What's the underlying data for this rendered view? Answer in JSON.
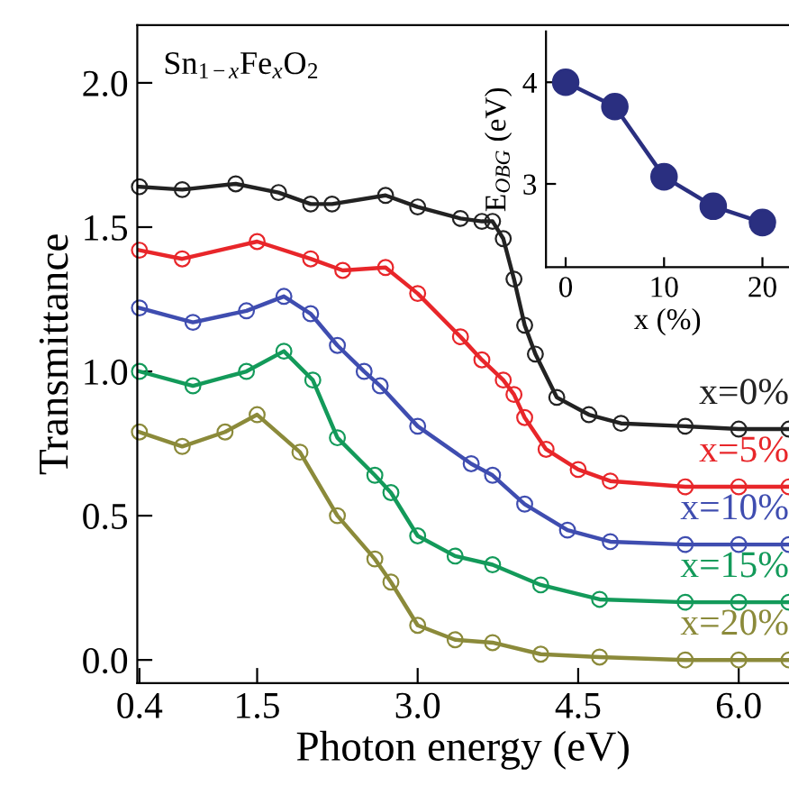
{
  "chart_data": [
    {
      "type": "line",
      "xlabel": "Photon energy (eV)",
      "ylabel": "Transmittance",
      "annotations": [
        "Sn$_{1−x}$Fe$_{x}$O$_{2}$"
      ],
      "xlim": [
        0.38,
        6.47
      ],
      "ylim": [
        -0.08,
        2.2
      ],
      "xticks": [
        {
          "value": 0.4,
          "label": "0.4"
        },
        {
          "value": 1.5,
          "label": "1.5"
        },
        {
          "value": 3.0,
          "label": "3.0"
        },
        {
          "value": 4.5,
          "label": "4.5"
        },
        {
          "value": 6.0,
          "label": "6.0"
        }
      ],
      "yticks": [
        {
          "value": 0.0,
          "label": "0.0"
        },
        {
          "value": 0.5,
          "label": "0.5"
        },
        {
          "value": 1.0,
          "label": "1.0"
        },
        {
          "value": 1.5,
          "label": "1.5"
        },
        {
          "value": 2.0,
          "label": "2.0"
        }
      ],
      "marker": "circle",
      "series": [
        {
          "name": "x=0%",
          "color": "#222222",
          "x": [
            0.4,
            0.8,
            1.3,
            1.7,
            2.0,
            2.2,
            2.7,
            3.0,
            3.4,
            3.6,
            3.7,
            3.8,
            3.9,
            4.0,
            4.1,
            4.3,
            4.6,
            4.9,
            5.5,
            6.0,
            6.47
          ],
          "values": [
            1.64,
            1.63,
            1.65,
            1.62,
            1.58,
            1.58,
            1.61,
            1.57,
            1.53,
            1.52,
            1.52,
            1.46,
            1.32,
            1.16,
            1.06,
            0.91,
            0.85,
            0.82,
            0.81,
            0.8,
            0.8
          ]
        },
        {
          "name": "x=5%",
          "color": "#e8262a",
          "x": [
            0.4,
            0.8,
            1.5,
            2.0,
            2.3,
            2.7,
            3.0,
            3.4,
            3.6,
            3.8,
            3.9,
            4.0,
            4.2,
            4.5,
            4.8,
            5.5,
            6.0,
            6.47
          ],
          "values": [
            1.42,
            1.39,
            1.45,
            1.39,
            1.35,
            1.36,
            1.27,
            1.12,
            1.04,
            0.97,
            0.92,
            0.84,
            0.73,
            0.66,
            0.62,
            0.6,
            0.6,
            0.6
          ]
        },
        {
          "name": "x=10%",
          "color": "#3f4db0",
          "x": [
            0.4,
            0.9,
            1.4,
            1.75,
            2.0,
            2.25,
            2.5,
            2.65,
            3.0,
            3.5,
            3.7,
            4.0,
            4.4,
            4.8,
            5.5,
            6.0,
            6.47
          ],
          "values": [
            1.22,
            1.17,
            1.21,
            1.26,
            1.2,
            1.09,
            1.0,
            0.95,
            0.81,
            0.68,
            0.64,
            0.54,
            0.45,
            0.41,
            0.4,
            0.4,
            0.4
          ]
        },
        {
          "name": "x=15%",
          "color": "#139a5a",
          "x": [
            0.4,
            0.9,
            1.4,
            1.75,
            2.02,
            2.25,
            2.6,
            2.75,
            3.0,
            3.35,
            3.7,
            4.15,
            4.7,
            5.5,
            6.0,
            6.47
          ],
          "values": [
            1.0,
            0.95,
            1.0,
            1.07,
            0.97,
            0.77,
            0.64,
            0.58,
            0.43,
            0.36,
            0.33,
            0.26,
            0.21,
            0.2,
            0.2,
            0.2
          ]
        },
        {
          "name": "x=20%",
          "color": "#8b8a3a",
          "x": [
            0.4,
            0.8,
            1.2,
            1.5,
            1.9,
            2.25,
            2.6,
            2.75,
            3.0,
            3.35,
            3.7,
            4.15,
            4.7,
            5.5,
            6.0,
            6.47
          ],
          "values": [
            0.79,
            0.74,
            0.79,
            0.85,
            0.72,
            0.5,
            0.35,
            0.27,
            0.12,
            0.07,
            0.06,
            0.02,
            0.01,
            0.0,
            0.0,
            0.0
          ]
        }
      ]
    },
    {
      "type": "line",
      "xlabel": "x (%)",
      "ylabel": "E$_{OBG}$ (eV)",
      "xlim": [
        -2,
        22.7
      ],
      "ylim": [
        2.18,
        4.5
      ],
      "xticks": [
        0,
        10,
        20
      ],
      "yticks": [
        3,
        4
      ],
      "marker": "circle",
      "series": [
        {
          "color": "#2a2f80",
          "x": [
            0,
            5,
            10,
            15,
            20
          ],
          "values": [
            4.0,
            3.76,
            3.07,
            2.78,
            2.62
          ]
        }
      ]
    }
  ]
}
